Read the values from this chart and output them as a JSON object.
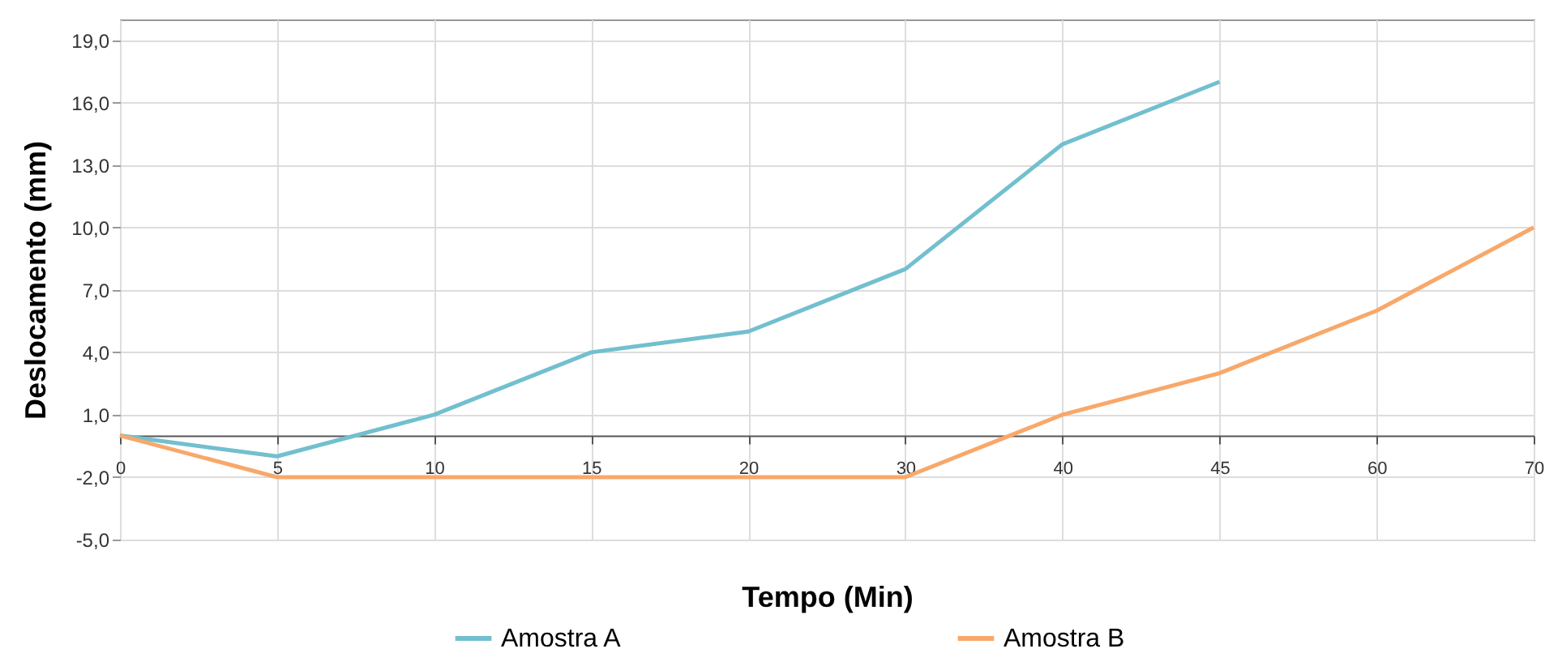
{
  "chart_data": {
    "type": "line",
    "xlabel": "Tempo (Min)",
    "ylabel": "Deslocamento (mm)",
    "categories": [
      "0",
      "5",
      "10",
      "15",
      "20",
      "30",
      "40",
      "45",
      "60",
      "70"
    ],
    "series": [
      {
        "name": "Amostra A",
        "color": "#72bfcf",
        "values": [
          0,
          -1,
          1,
          4,
          5,
          8,
          14,
          17,
          null,
          null
        ]
      },
      {
        "name": "Amostra B",
        "color": "#f8a86a",
        "values": [
          0,
          -2,
          -2,
          -2,
          -2,
          -2,
          1,
          3,
          6,
          10
        ]
      }
    ],
    "ylim": [
      -5,
      20
    ],
    "yticks": [
      {
        "value": -5,
        "label": "-5,0"
      },
      {
        "value": -2,
        "label": "-2,0"
      },
      {
        "value": 1,
        "label": "1,0"
      },
      {
        "value": 4,
        "label": "4,0"
      },
      {
        "value": 7,
        "label": "7,0"
      },
      {
        "value": 10,
        "label": "10,0"
      },
      {
        "value": 13,
        "label": "13,0"
      },
      {
        "value": 16,
        "label": "16,0"
      },
      {
        "value": 19,
        "label": "19,0"
      }
    ],
    "grid": true,
    "legend": "bottom",
    "marker": "none",
    "line_style": "solid"
  }
}
